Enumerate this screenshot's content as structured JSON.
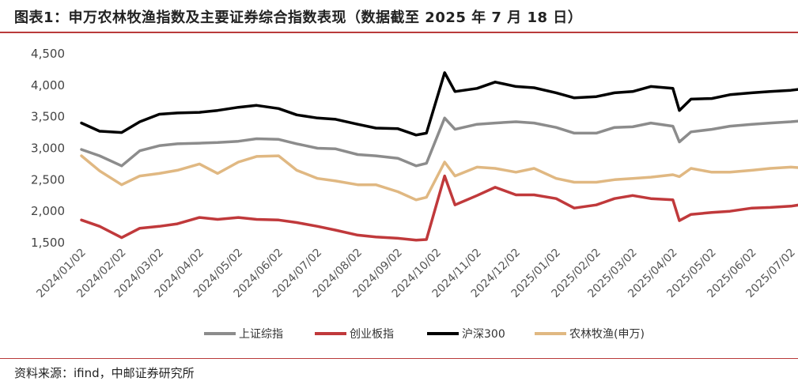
{
  "title": "图表1：申万农林牧渔指数及主要证券综合指数表现（数据截至 2025 年 7 月 18 日）",
  "source": "资料来源：ifind，中邮证券研究所",
  "chart_data": {
    "type": "line",
    "title": "图表1：申万农林牧渔指数及主要证券综合指数表现（数据截至 2025 年 7 月 18 日）",
    "xlabel": "",
    "ylabel": "",
    "ylim": [
      1500,
      4500
    ],
    "y_ticks": [
      "1,500",
      "2,000",
      "2,500",
      "3,000",
      "3,500",
      "4,000",
      "4,500"
    ],
    "x_ticks": [
      "2024/01/02",
      "2024/02/02",
      "2024/03/02",
      "2024/04/02",
      "2024/05/02",
      "2024/06/02",
      "2024/07/02",
      "2024/08/02",
      "2024/09/02",
      "2024/10/02",
      "2024/11/02",
      "2024/12/02",
      "2025/01/02",
      "2025/02/02",
      "2025/03/02",
      "2025/04/02",
      "2025/05/02",
      "2025/06/02",
      "2025/07/02"
    ],
    "grid": false,
    "legend_position": "bottom",
    "x": [
      "2024/01/02",
      "2024/01/16",
      "2024/02/02",
      "2024/02/16",
      "2024/03/02",
      "2024/03/16",
      "2024/04/02",
      "2024/04/16",
      "2024/05/02",
      "2024/05/16",
      "2024/06/02",
      "2024/06/16",
      "2024/07/02",
      "2024/07/16",
      "2024/08/02",
      "2024/08/16",
      "2024/09/02",
      "2024/09/16",
      "2024/09/24",
      "2024/10/08",
      "2024/10/16",
      "2024/11/02",
      "2024/11/16",
      "2024/12/02",
      "2024/12/16",
      "2025/01/02",
      "2025/01/16",
      "2025/02/02",
      "2025/02/16",
      "2025/03/02",
      "2025/03/16",
      "2025/04/02",
      "2025/04/07",
      "2025/04/16",
      "2025/05/02",
      "2025/05/16",
      "2025/06/02",
      "2025/06/16",
      "2025/07/02",
      "2025/07/18"
    ],
    "series": [
      {
        "name": "上证综指",
        "color": "#8c8c8c",
        "values": [
          2980,
          2880,
          2720,
          2960,
          3040,
          3070,
          3080,
          3090,
          3110,
          3150,
          3140,
          3070,
          3000,
          2990,
          2900,
          2880,
          2840,
          2720,
          2760,
          3480,
          3300,
          3380,
          3400,
          3420,
          3400,
          3330,
          3240,
          3240,
          3330,
          3340,
          3400,
          3350,
          3100,
          3260,
          3300,
          3350,
          3380,
          3400,
          3420,
          3450
        ]
      },
      {
        "name": "创业板指",
        "color": "#c0393b",
        "values": [
          1860,
          1760,
          1580,
          1730,
          1760,
          1800,
          1900,
          1870,
          1900,
          1870,
          1860,
          1820,
          1760,
          1700,
          1620,
          1590,
          1570,
          1540,
          1550,
          2560,
          2100,
          2250,
          2380,
          2260,
          2260,
          2200,
          2050,
          2100,
          2200,
          2250,
          2200,
          2180,
          1850,
          1950,
          1980,
          2000,
          2050,
          2060,
          2080,
          2130
        ]
      },
      {
        "name": "沪深300",
        "color": "#000000",
        "values": [
          3400,
          3270,
          3250,
          3420,
          3540,
          3560,
          3570,
          3600,
          3650,
          3680,
          3630,
          3530,
          3480,
          3460,
          3380,
          3320,
          3310,
          3210,
          3240,
          4200,
          3900,
          3950,
          4050,
          3980,
          3960,
          3880,
          3800,
          3820,
          3880,
          3900,
          3980,
          3950,
          3600,
          3780,
          3790,
          3850,
          3880,
          3900,
          3920,
          3960
        ]
      },
      {
        "name": "农林牧渔(申万)",
        "color": "#e0b882",
        "values": [
          2880,
          2640,
          2420,
          2560,
          2600,
          2650,
          2750,
          2600,
          2780,
          2870,
          2880,
          2650,
          2520,
          2480,
          2420,
          2420,
          2310,
          2180,
          2220,
          2780,
          2560,
          2700,
          2680,
          2620,
          2680,
          2520,
          2460,
          2460,
          2500,
          2520,
          2540,
          2580,
          2550,
          2680,
          2620,
          2620,
          2650,
          2680,
          2700,
          2680
        ]
      }
    ]
  }
}
